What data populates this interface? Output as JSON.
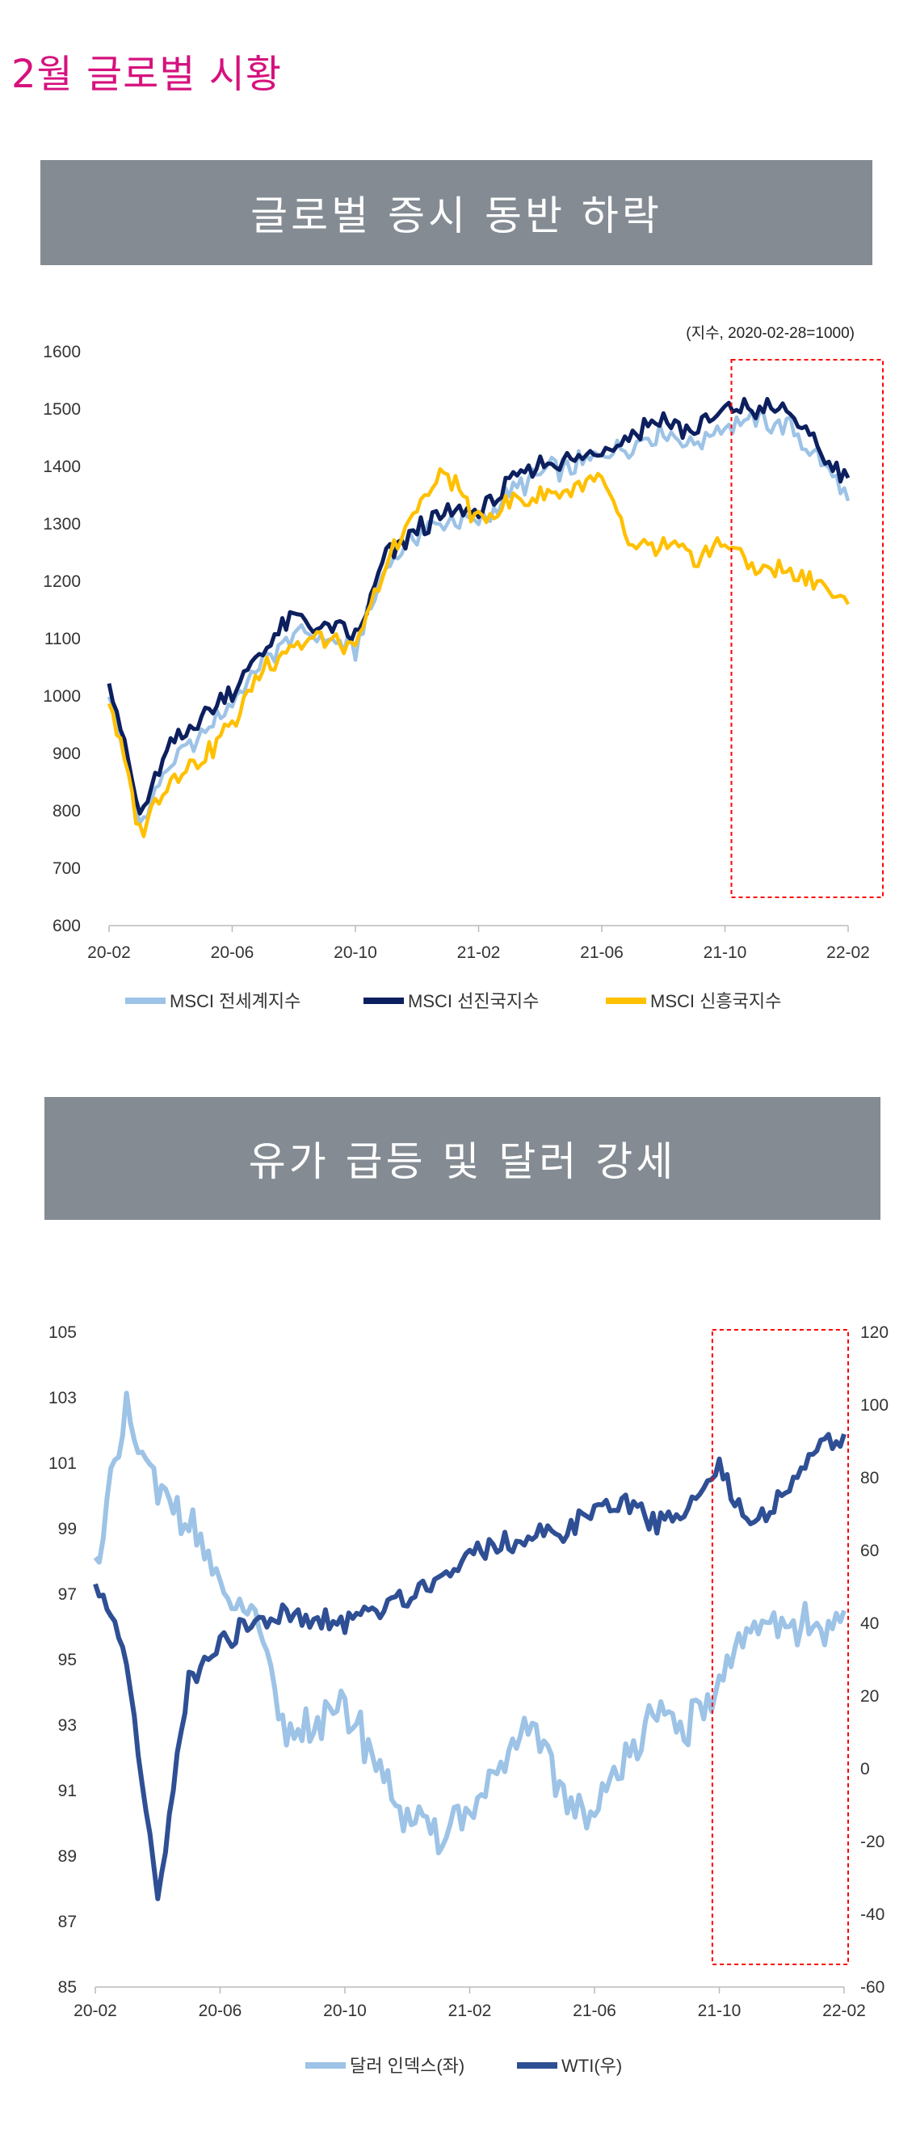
{
  "page": {
    "title": "2월 글로벌 시황"
  },
  "sections": [
    {
      "banner": "글로벌 증시 동반 하락"
    },
    {
      "banner": "유가 급등 및 달러 강세"
    }
  ],
  "colors": {
    "title_pink": "#d6117d",
    "banner_gray": "#848b93",
    "msci_world": "#9dc3e6",
    "msci_developed": "#0c1f5e",
    "msci_emerging": "#ffc000",
    "dollar_index": "#9dc3e6",
    "wti": "#2f4f95",
    "highlight": "#ff0000"
  },
  "chart_data": [
    {
      "type": "line",
      "note": "(지수, 2020-02-28=1000)",
      "y_ticks": [
        600,
        700,
        800,
        900,
        1000,
        1100,
        1200,
        1300,
        1400,
        1500,
        1600
      ],
      "ylim": [
        600,
        1600
      ],
      "x_tick_labels": [
        "20-02",
        "20-06",
        "20-10",
        "21-02",
        "21-06",
        "21-10",
        "22-02"
      ],
      "x": [
        "2020-02",
        "2020-03",
        "2020-04",
        "2020-05",
        "2020-06",
        "2020-07",
        "2020-08",
        "2020-09",
        "2020-10",
        "2020-11",
        "2020-12",
        "2021-01",
        "2021-02",
        "2021-03",
        "2021-04",
        "2021-05",
        "2021-06",
        "2021-07",
        "2021-08",
        "2021-09",
        "2021-10",
        "2021-11",
        "2021-12",
        "2022-01",
        "2022-02"
      ],
      "highlight_range": [
        "2021-10",
        "2022-02"
      ],
      "series": [
        {
          "name": "MSCI 전세계지수",
          "values": [
            1010,
            780,
            880,
            930,
            990,
            1060,
            1110,
            1100,
            1080,
            1230,
            1280,
            1310,
            1300,
            1350,
            1390,
            1400,
            1420,
            1440,
            1460,
            1440,
            1470,
            1480,
            1470,
            1420,
            1340
          ]
        },
        {
          "name": "MSCI 선진국지수",
          "values": [
            1030,
            790,
            910,
            960,
            1010,
            1080,
            1140,
            1120,
            1100,
            1240,
            1290,
            1320,
            1320,
            1370,
            1410,
            1410,
            1430,
            1460,
            1480,
            1460,
            1500,
            1500,
            1500,
            1430,
            1380
          ]
        },
        {
          "name": "MSCI 신흥국지수",
          "values": [
            1000,
            760,
            860,
            890,
            950,
            1050,
            1090,
            1100,
            1080,
            1230,
            1330,
            1390,
            1300,
            1340,
            1350,
            1360,
            1380,
            1250,
            1260,
            1240,
            1270,
            1220,
            1220,
            1200,
            1160
          ]
        }
      ]
    },
    {
      "type": "line",
      "y_ticks_left": [
        85,
        87,
        89,
        91,
        93,
        95,
        97,
        99,
        101,
        103,
        105
      ],
      "ylim_left": [
        85,
        105
      ],
      "y_ticks_right": [
        -60,
        -40,
        -20,
        0,
        20,
        40,
        60,
        80,
        100,
        120
      ],
      "ylim_right": [
        -60,
        120
      ],
      "x_tick_labels": [
        "20-02",
        "20-06",
        "20-10",
        "21-02",
        "21-06",
        "21-10",
        "22-02"
      ],
      "x": [
        "2020-02",
        "2020-03",
        "2020-04",
        "2020-05",
        "2020-06",
        "2020-07",
        "2020-08",
        "2020-09",
        "2020-10",
        "2020-11",
        "2020-12",
        "2021-01",
        "2021-02",
        "2021-03",
        "2021-04",
        "2021-05",
        "2021-06",
        "2021-07",
        "2021-08",
        "2021-09",
        "2021-10",
        "2021-11",
        "2021-12",
        "2022-01",
        "2022-02"
      ],
      "highlight_range": [
        "2021-09",
        "2022-02"
      ],
      "series": [
        {
          "name": "달러 인덱스(좌)",
          "axis": "left",
          "values": [
            98,
            102.5,
            100,
            99.5,
            97,
            96.5,
            93,
            93,
            93.5,
            92,
            90,
            89.8,
            90.5,
            91.5,
            93,
            91,
            90,
            92.5,
            93,
            93,
            94,
            96,
            96,
            96,
            96.5
          ]
        },
        {
          "name": "WTI(우)",
          "axis": "right",
          "values": [
            50,
            30,
            -37,
            25,
            35,
            40,
            42,
            40,
            40,
            44,
            47,
            52,
            60,
            63,
            63,
            65,
            72,
            72,
            68,
            72,
            82,
            65,
            75,
            88,
            92
          ]
        }
      ]
    }
  ]
}
